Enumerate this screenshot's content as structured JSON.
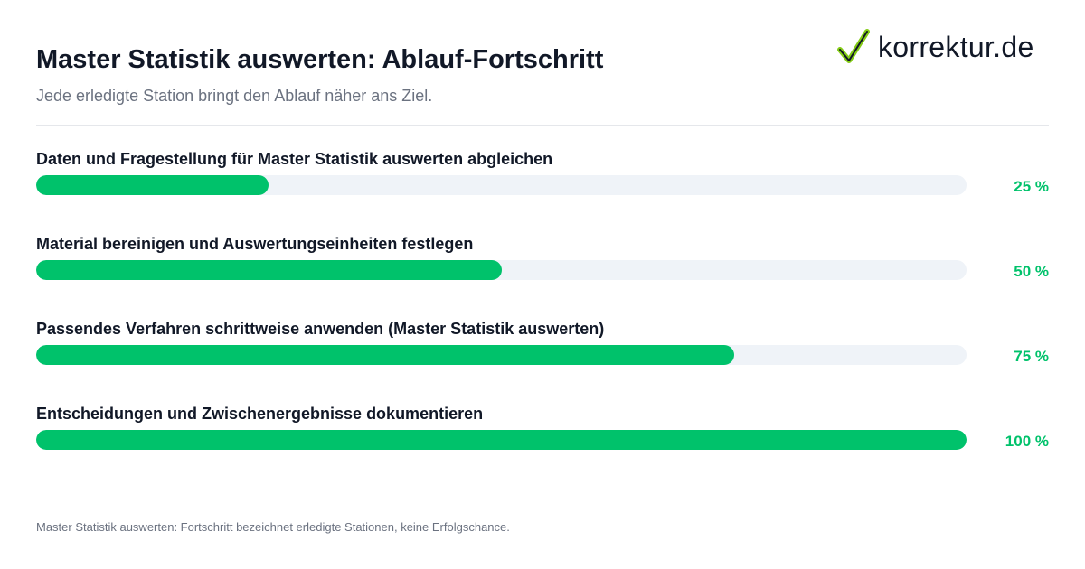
{
  "header": {
    "title": "Master Statistik auswerten: Ablauf-Fortschritt",
    "subtitle": "Jede erledigte Station bringt den Ablauf näher ans Ziel."
  },
  "logo": {
    "text": "korrektur.de",
    "icon": "checkmark-icon",
    "icon_color": "#84cc16"
  },
  "colors": {
    "accent": "#00c26b",
    "track": "#eff3f8"
  },
  "chart_data": {
    "type": "bar",
    "orientation": "horizontal",
    "categories": [
      "Daten und Fragestellung für Master Statistik auswerten abgleichen",
      "Material bereinigen und Auswertungseinheiten festlegen",
      "Passendes Verfahren schrittweise anwenden (Master Statistik auswerten)",
      "Entscheidungen und Zwischenergebnisse dokumentieren"
    ],
    "values": [
      25,
      50,
      75,
      100
    ],
    "value_labels": [
      "25 %",
      "50 %",
      "75 %",
      "100 %"
    ],
    "xlim": [
      0,
      100
    ],
    "grid": false
  },
  "footnote": "Master Statistik auswerten: Fortschritt bezeichnet erledigte Stationen, keine Erfolgschance."
}
